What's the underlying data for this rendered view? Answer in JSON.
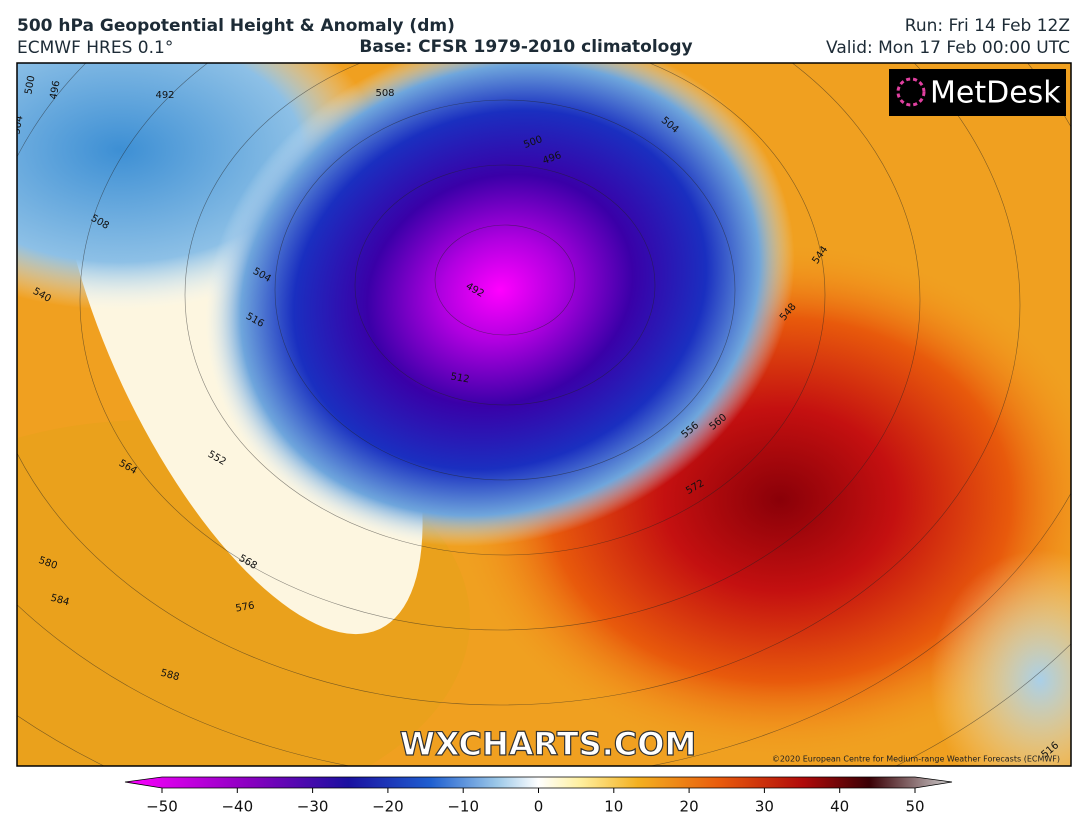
{
  "header": {
    "title": "500 hPa Geopotential Height & Anomaly (dm)",
    "model": "ECMWF HRES 0.1°",
    "base": "Base: CFSR 1979-2010 climatology",
    "run": "Run: Fri 14 Feb 12Z",
    "valid": "Valid: Mon 17 Feb 00:00 UTC"
  },
  "map": {
    "logo": "MetDesk",
    "watermark": "WXCHARTS.COM",
    "copyright": "©2020 European Centre for Medium-range Weather Forecasts (ECMWF)",
    "contour_labels": [
      500,
      496,
      492,
      504,
      508,
      500,
      496,
      504,
      508,
      504,
      492,
      540,
      516,
      512,
      544,
      548,
      552,
      556,
      560,
      564,
      568,
      572,
      576,
      580,
      584,
      588,
      516
    ]
  },
  "colorbar": {
    "lim": [
      -50,
      50
    ],
    "ticks": [
      {
        "value": -50,
        "label": "−50"
      },
      {
        "value": -40,
        "label": "−40"
      },
      {
        "value": -30,
        "label": "−30"
      },
      {
        "value": -20,
        "label": "−20"
      },
      {
        "value": -10,
        "label": "−10"
      },
      0,
      10,
      20,
      30,
      40,
      50
    ]
  }
}
